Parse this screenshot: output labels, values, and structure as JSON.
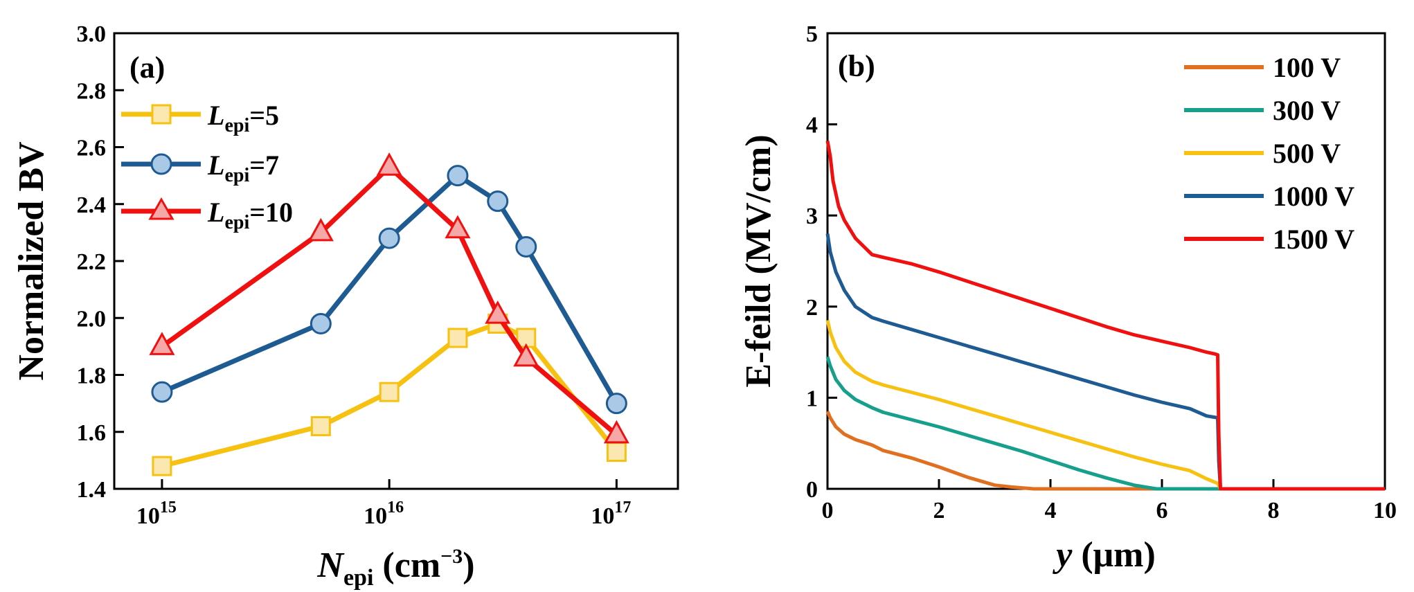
{
  "chart_data": [
    {
      "type": "line",
      "panel_label": "(a)",
      "xscale": "log",
      "xlim_exp": [
        14.79,
        17.27
      ],
      "ylim": [
        1.4,
        3.0
      ],
      "xticks": [
        {
          "value": 1000000000000000.0,
          "base": "10",
          "exp": "15"
        },
        {
          "value": 1e+16,
          "base": "10",
          "exp": "16"
        },
        {
          "value": 1e+17,
          "base": "10",
          "exp": "17"
        }
      ],
      "yticks": [
        "1.4",
        "1.6",
        "1.8",
        "2.0",
        "2.2",
        "2.4",
        "2.6",
        "2.8",
        "3.0"
      ],
      "ytick_values": [
        1.4,
        1.6,
        1.8,
        2.0,
        2.2,
        2.4,
        2.6,
        2.8,
        3.0
      ],
      "xlabel": {
        "main": "N",
        "sub": "epi",
        "units": " (cm",
        "sup": "−3",
        "close": ")"
      },
      "ylabel": "Normalized BV",
      "legend_position": "top-left",
      "series": [
        {
          "name_main": "L",
          "name_sub": "epi",
          "name_rest": "=5",
          "color": "#f7c111",
          "fill": "#fbe8b0",
          "marker": "square",
          "x": [
            1000000000000000.0,
            5000000000000000.0,
            1e+16,
            2e+16,
            3e+16,
            4e+16,
            1e+17
          ],
          "y": [
            1.48,
            1.62,
            1.74,
            1.93,
            1.98,
            1.93,
            1.53
          ]
        },
        {
          "name_main": "L",
          "name_sub": "epi",
          "name_rest": "=7",
          "color": "#1f5b93",
          "fill": "#a9c9e6",
          "marker": "circle",
          "x": [
            1000000000000000.0,
            5000000000000000.0,
            1e+16,
            2e+16,
            3e+16,
            4e+16,
            1e+17
          ],
          "y": [
            1.74,
            1.98,
            2.28,
            2.5,
            2.41,
            2.25,
            1.7
          ]
        },
        {
          "name_main": "L",
          "name_sub": "epi",
          "name_rest": "=10",
          "color": "#f01010",
          "fill": "#f6a7a7",
          "marker": "triangle",
          "x": [
            1000000000000000.0,
            5000000000000000.0,
            1e+16,
            2e+16,
            3e+16,
            4e+16,
            1e+17
          ],
          "y": [
            1.9,
            2.3,
            2.53,
            2.31,
            2.01,
            1.86,
            1.59
          ]
        }
      ]
    },
    {
      "type": "line",
      "panel_label": "(b)",
      "xlim": [
        0,
        10
      ],
      "ylim": [
        0,
        5
      ],
      "xticks": [
        "0",
        "2",
        "4",
        "6",
        "8",
        "10"
      ],
      "xtick_values": [
        0,
        2,
        4,
        6,
        8,
        10
      ],
      "yticks": [
        "0",
        "1",
        "2",
        "3",
        "4",
        "5"
      ],
      "ytick_values": [
        0,
        1,
        2,
        3,
        4,
        5
      ],
      "xlabel": {
        "main": "y",
        "units": " (μm)"
      },
      "ylabel": "E-feild (MV/cm)",
      "legend_position": "top-right",
      "series": [
        {
          "name": "100 V",
          "color": "#e07020",
          "x": [
            0,
            0.05,
            0.15,
            0.3,
            0.5,
            0.8,
            1.0,
            1.5,
            2.0,
            2.5,
            3.0,
            3.3,
            3.7,
            4.0,
            6.0,
            7.0,
            8.0,
            10.0
          ],
          "y": [
            0.85,
            0.78,
            0.68,
            0.6,
            0.54,
            0.48,
            0.42,
            0.34,
            0.24,
            0.13,
            0.04,
            0.02,
            0.0,
            0.0,
            0.0,
            0.0,
            0.0,
            0.0
          ]
        },
        {
          "name": "300 V",
          "color": "#16a08c",
          "x": [
            0,
            0.05,
            0.15,
            0.3,
            0.5,
            0.8,
            1.0,
            1.5,
            2.0,
            2.5,
            3.0,
            3.5,
            4.0,
            4.5,
            5.0,
            5.5,
            5.9,
            6.0,
            7.0,
            8.0,
            10.0
          ],
          "y": [
            1.45,
            1.35,
            1.2,
            1.08,
            0.98,
            0.89,
            0.84,
            0.76,
            0.68,
            0.59,
            0.5,
            0.41,
            0.31,
            0.21,
            0.12,
            0.04,
            0.0,
            0.0,
            0.0,
            0.0,
            0.0
          ]
        },
        {
          "name": "500 V",
          "color": "#f7c111",
          "x": [
            0,
            0.05,
            0.15,
            0.3,
            0.5,
            0.8,
            1.0,
            1.5,
            2.0,
            2.5,
            3.0,
            3.5,
            4.0,
            4.5,
            5.0,
            5.5,
            6.0,
            6.5,
            6.8,
            7.0,
            7.05,
            8.0,
            10.0
          ],
          "y": [
            1.85,
            1.72,
            1.55,
            1.4,
            1.28,
            1.18,
            1.14,
            1.06,
            0.98,
            0.89,
            0.8,
            0.71,
            0.62,
            0.53,
            0.44,
            0.35,
            0.27,
            0.2,
            0.11,
            0.06,
            0.0,
            0.0,
            0.0
          ]
        },
        {
          "name": "1000 V",
          "color": "#1f5b93",
          "x": [
            0,
            0.05,
            0.15,
            0.3,
            0.5,
            0.8,
            1.0,
            1.5,
            2.0,
            2.5,
            3.0,
            3.5,
            4.0,
            4.5,
            5.0,
            5.5,
            6.0,
            6.5,
            6.8,
            7.0,
            7.02,
            7.05,
            8.0,
            10.0
          ],
          "y": [
            2.8,
            2.6,
            2.38,
            2.18,
            2.0,
            1.88,
            1.84,
            1.75,
            1.66,
            1.57,
            1.48,
            1.39,
            1.3,
            1.21,
            1.12,
            1.03,
            0.95,
            0.88,
            0.8,
            0.78,
            0.3,
            0.0,
            0.0,
            0.0
          ]
        },
        {
          "name": "1500 V",
          "color": "#f01010",
          "x": [
            0,
            0.05,
            0.1,
            0.2,
            0.3,
            0.5,
            0.8,
            1.0,
            1.5,
            2.0,
            2.5,
            3.0,
            3.5,
            4.0,
            4.5,
            5.0,
            5.5,
            6.0,
            6.5,
            6.8,
            6.95,
            7.0,
            7.02,
            7.05,
            8.0,
            10.0
          ],
          "y": [
            3.82,
            3.65,
            3.38,
            3.1,
            2.95,
            2.75,
            2.57,
            2.54,
            2.47,
            2.38,
            2.28,
            2.18,
            2.08,
            1.98,
            1.88,
            1.78,
            1.69,
            1.62,
            1.55,
            1.5,
            1.48,
            1.47,
            0.6,
            0.0,
            0.0,
            0.0
          ]
        }
      ]
    }
  ]
}
